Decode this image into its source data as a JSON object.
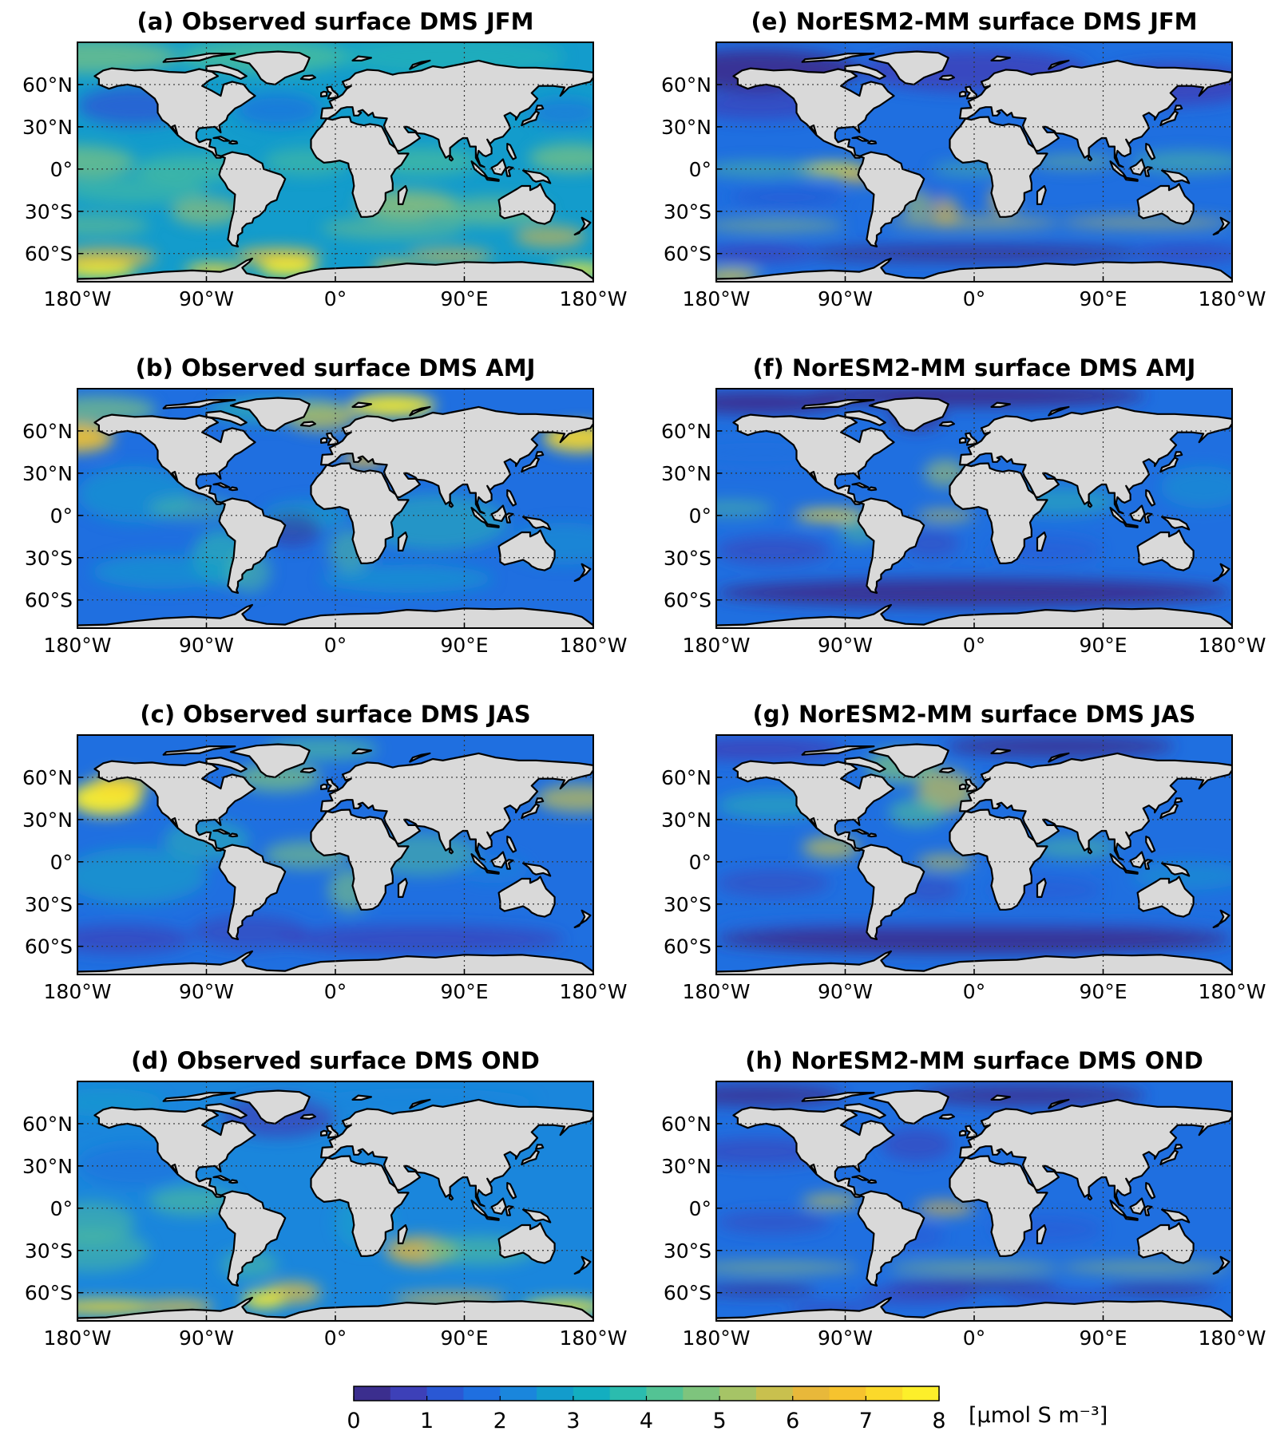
{
  "panels": [
    {
      "id": "a",
      "title": "(a) Observed surface DMS JFM",
      "variant": "obs_jfm",
      "col": 0,
      "row": 0
    },
    {
      "id": "b",
      "title": "(b) Observed surface DMS AMJ",
      "variant": "obs_amj",
      "col": 0,
      "row": 1
    },
    {
      "id": "c",
      "title": "(c) Observed surface DMS JAS",
      "variant": "obs_jas",
      "col": 0,
      "row": 2
    },
    {
      "id": "d",
      "title": "(d) Observed surface DMS OND",
      "variant": "obs_ond",
      "col": 0,
      "row": 3
    },
    {
      "id": "e",
      "title": "(e) NorESM2-MM surface DMS JFM",
      "variant": "mod_jfm",
      "col": 1,
      "row": 0
    },
    {
      "id": "f",
      "title": "(f) NorESM2-MM surface DMS AMJ",
      "variant": "mod_amj",
      "col": 1,
      "row": 1
    },
    {
      "id": "g",
      "title": "(g) NorESM2-MM surface DMS JAS",
      "variant": "mod_jas",
      "col": 1,
      "row": 2
    },
    {
      "id": "h",
      "title": "(h) NorESM2-MM surface DMS OND",
      "variant": "mod_ond",
      "col": 1,
      "row": 3
    }
  ],
  "lat_ticks": [
    {
      "value": 60,
      "label": "60°N"
    },
    {
      "value": 30,
      "label": "30°N"
    },
    {
      "value": 0,
      "label": "0°"
    },
    {
      "value": -30,
      "label": "30°S"
    },
    {
      "value": -60,
      "label": "60°S"
    }
  ],
  "lon_ticks": [
    {
      "value": -180,
      "label": "180°W"
    },
    {
      "value": -90,
      "label": "90°W"
    },
    {
      "value": 0,
      "label": "0°"
    },
    {
      "value": 90,
      "label": "90°E"
    },
    {
      "value": 180,
      "label": "180°W"
    }
  ],
  "lat_range": [
    -80,
    90
  ],
  "lon_range": [
    -180,
    180
  ],
  "colorbar": {
    "ticks": [
      "0",
      "1",
      "2",
      "3",
      "4",
      "5",
      "6",
      "7",
      "8"
    ],
    "range": [
      0,
      8
    ],
    "unit": "[μmol S m⁻³]",
    "colors": [
      "#3b2e8e",
      "#3d40b8",
      "#2a58d4",
      "#1f6fe0",
      "#1a86dc",
      "#139ccc",
      "#13aec0",
      "#2bbcae",
      "#53c394",
      "#7ec47d",
      "#a6c466",
      "#c9c04e",
      "#e8b83a",
      "#f6c32e",
      "#fbd92a",
      "#fdef2a"
    ]
  },
  "colors": {
    "land": "#d9d9d9",
    "ocean_low": "#3b2e8e",
    "ocean_mid": "#1f6fe0",
    "ocean_high": "#fdef2a"
  }
}
